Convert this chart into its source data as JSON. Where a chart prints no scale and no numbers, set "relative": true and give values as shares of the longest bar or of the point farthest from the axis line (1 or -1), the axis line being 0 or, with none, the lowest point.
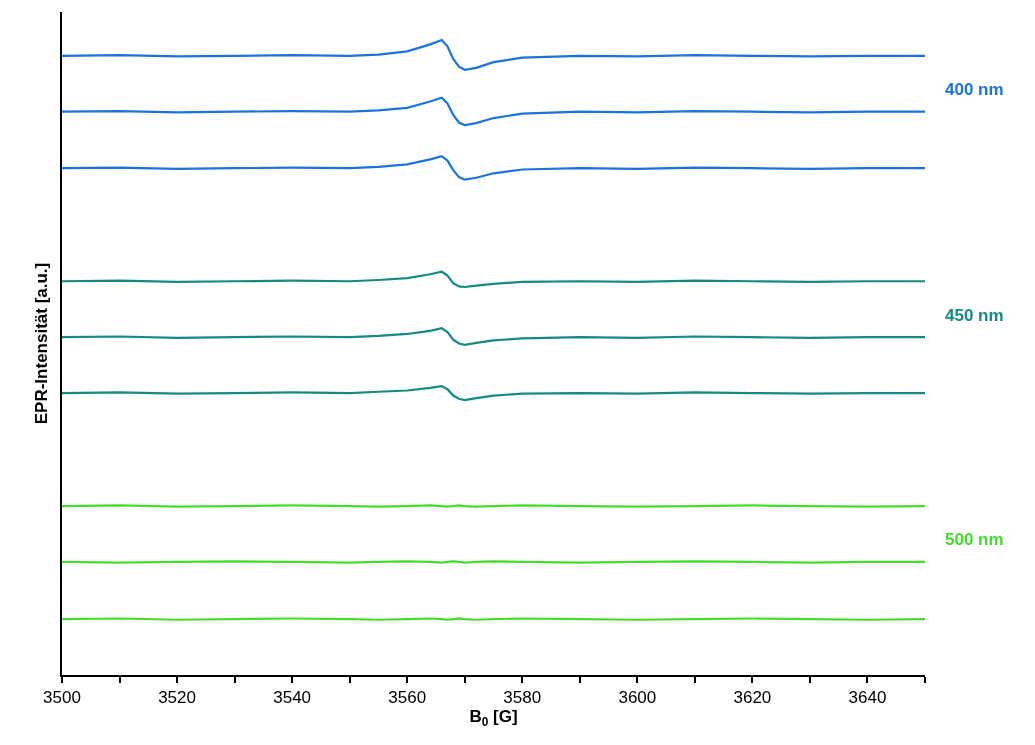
{
  "chart_data": {
    "type": "line",
    "relative": true,
    "xlabel": "B$_{0}$ [G]",
    "ylabel": "EPR-Intensität [a.u.]",
    "x": [
      3500,
      3510,
      3520,
      3530,
      3540,
      3550,
      3555,
      3560,
      3564,
      3566,
      3567,
      3568,
      3569,
      3570,
      3572,
      3575,
      3580,
      3590,
      3600,
      3610,
      3620,
      3630,
      3640,
      3650
    ],
    "xlim": [
      3500,
      3650
    ],
    "xticks": [
      3500,
      {
        "value": 3510,
        "label": null
      },
      3520,
      {
        "value": 3530,
        "label": null
      },
      3540,
      {
        "value": 3550,
        "label": null
      },
      3560,
      {
        "value": 3570,
        "label": null
      },
      3580,
      {
        "value": 3590,
        "label": null
      },
      3600,
      {
        "value": 3610,
        "label": null
      },
      3620,
      {
        "value": 3630,
        "label": null
      },
      3640,
      {
        "value": 3650,
        "label": null
      }
    ],
    "legend": false,
    "marker": "none",
    "line_style": "solid",
    "series": [
      {
        "color": "#1a73e0",
        "values": [
          0.975,
          0.976,
          0.974,
          0.975,
          0.976,
          0.975,
          0.977,
          0.982,
          0.993,
          1.0,
          0.99,
          0.97,
          0.958,
          0.953,
          0.956,
          0.965,
          0.972,
          0.975,
          0.974,
          0.976,
          0.975,
          0.974,
          0.975,
          0.975
        ]
      },
      {
        "name": "400 nm",
        "color": "#1a73e0",
        "values": [
          0.887,
          0.888,
          0.886,
          0.887,
          0.888,
          0.887,
          0.889,
          0.893,
          0.903,
          0.909,
          0.9,
          0.882,
          0.87,
          0.866,
          0.869,
          0.877,
          0.884,
          0.887,
          0.886,
          0.888,
          0.887,
          0.886,
          0.887,
          0.887
        ]
      },
      {
        "color": "#1a73e0",
        "values": [
          0.798,
          0.799,
          0.797,
          0.798,
          0.799,
          0.798,
          0.8,
          0.804,
          0.812,
          0.817,
          0.81,
          0.795,
          0.784,
          0.78,
          0.783,
          0.79,
          0.796,
          0.798,
          0.797,
          0.799,
          0.798,
          0.797,
          0.798,
          0.798
        ]
      },
      {
        "color": "#138a85",
        "values": [
          0.62,
          0.621,
          0.619,
          0.62,
          0.621,
          0.62,
          0.622,
          0.625,
          0.631,
          0.635,
          0.629,
          0.617,
          0.612,
          0.611,
          0.613,
          0.616,
          0.619,
          0.62,
          0.619,
          0.621,
          0.62,
          0.619,
          0.62,
          0.62
        ]
      },
      {
        "name": "450 nm",
        "color": "#138a85",
        "values": [
          0.532,
          0.533,
          0.531,
          0.532,
          0.533,
          0.532,
          0.534,
          0.537,
          0.542,
          0.546,
          0.54,
          0.528,
          0.522,
          0.52,
          0.523,
          0.527,
          0.53,
          0.532,
          0.531,
          0.533,
          0.532,
          0.531,
          0.532,
          0.532
        ]
      },
      {
        "color": "#138a85",
        "values": [
          0.444,
          0.445,
          0.443,
          0.444,
          0.445,
          0.444,
          0.446,
          0.448,
          0.452,
          0.455,
          0.45,
          0.44,
          0.435,
          0.433,
          0.436,
          0.44,
          0.443,
          0.444,
          0.443,
          0.445,
          0.444,
          0.443,
          0.444,
          0.444
        ]
      },
      {
        "color": "#44dd2a",
        "values": [
          0.266,
          0.267,
          0.265,
          0.266,
          0.267,
          0.266,
          0.265,
          0.266,
          0.267,
          0.266,
          0.265,
          0.266,
          0.267,
          0.266,
          0.265,
          0.266,
          0.267,
          0.266,
          0.265,
          0.266,
          0.267,
          0.266,
          0.265,
          0.266
        ]
      },
      {
        "name": "500 nm",
        "color": "#44dd2a",
        "values": [
          0.178,
          0.177,
          0.178,
          0.179,
          0.178,
          0.177,
          0.178,
          0.179,
          0.178,
          0.177,
          0.178,
          0.179,
          0.178,
          0.177,
          0.178,
          0.179,
          0.178,
          0.177,
          0.178,
          0.179,
          0.178,
          0.177,
          0.178,
          0.178
        ]
      },
      {
        "color": "#44dd2a",
        "values": [
          0.088,
          0.089,
          0.087,
          0.088,
          0.089,
          0.088,
          0.087,
          0.088,
          0.089,
          0.088,
          0.087,
          0.088,
          0.089,
          0.088,
          0.087,
          0.088,
          0.089,
          0.088,
          0.087,
          0.088,
          0.089,
          0.088,
          0.087,
          0.088
        ]
      }
    ]
  }
}
